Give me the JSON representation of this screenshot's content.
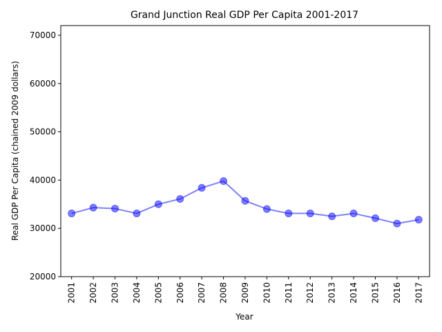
{
  "chart_data": {
    "type": "line",
    "title": "Grand Junction Real GDP Per Capita 2001-2017",
    "xlabel": "Year",
    "ylabel": "Real GDP Per Capita (chained 2009 dollars)",
    "categories": [
      "2001",
      "2002",
      "2003",
      "2004",
      "2005",
      "2006",
      "2007",
      "2008",
      "2009",
      "2010",
      "2011",
      "2012",
      "2013",
      "2014",
      "2015",
      "2016",
      "2017"
    ],
    "series": [
      {
        "values": [
          33100,
          34300,
          34100,
          33100,
          35000,
          36100,
          38400,
          39800,
          35700,
          34000,
          33100,
          33100,
          32500,
          33100,
          32100,
          31000,
          31800
        ],
        "color": "#0000ff"
      }
    ],
    "ylim": [
      20000,
      72000
    ],
    "yticks": [
      20000,
      30000,
      40000,
      50000,
      60000,
      70000
    ],
    "grid": false,
    "legend": "none"
  }
}
